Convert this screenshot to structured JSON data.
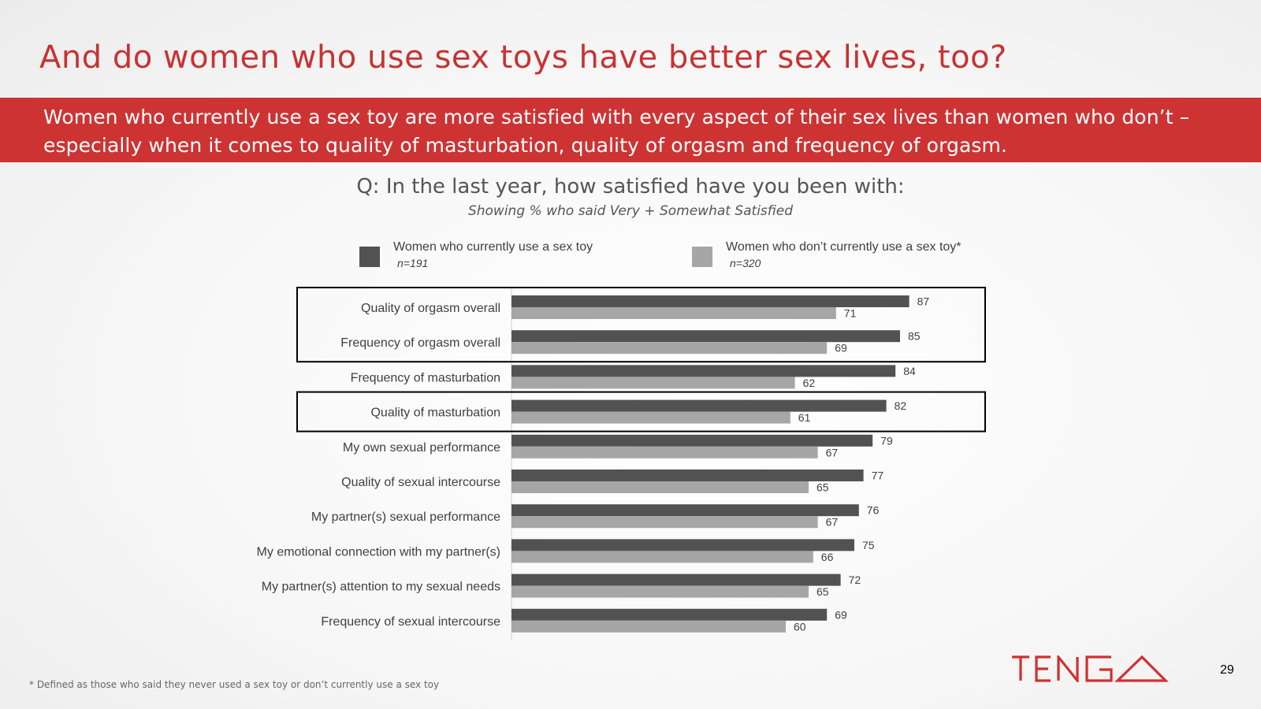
{
  "slide": {
    "title": "And do women who use sex toys have better sex lives, too?",
    "banner_line1": "Women who currently use a sex toy are more satisfied with every aspect of their sex lives than women who don’t –",
    "banner_line2": "especially when it comes to quality of masturbation, quality of orgasm and frequency of orgasm.",
    "question": "Q: In the last year, how satisfied have you been with:",
    "subtitle": "Showing % who said Very + Somewhat Satisfied",
    "footnote": "* Defined as those who said they never used a sex toy or don’t currently use a sex toy",
    "page_number": "29",
    "logo_text": "TENGA"
  },
  "legend": [
    {
      "label": "Women who currently use a sex toy",
      "n": "n=191",
      "color": "#525252"
    },
    {
      "label": "Women who don’t currently use a sex toy*",
      "n": "n=320",
      "color": "#a6a6a6"
    }
  ],
  "colors": {
    "accent": "#cd3333",
    "title": "#c83232",
    "series_users": "#525252",
    "series_non_users": "#a6a6a6"
  },
  "chart_data": {
    "type": "bar",
    "orientation": "horizontal",
    "categories": [
      "Quality of orgasm overall",
      "Frequency of orgasm overall",
      "Frequency of masturbation",
      "Quality of masturbation",
      "My own sexual performance",
      "Quality of sexual intercourse",
      "My partner(s) sexual performance",
      "My emotional connection with my partner(s)",
      "My partner(s) attention to my sexual needs",
      "Frequency of sexual intercourse"
    ],
    "series": [
      {
        "name": "Women who currently use a sex toy",
        "values": [
          87,
          85,
          84,
          82,
          79,
          77,
          76,
          75,
          72,
          69
        ]
      },
      {
        "name": "Women who don’t currently use a sex toy*",
        "values": [
          71,
          69,
          62,
          61,
          67,
          65,
          67,
          66,
          65,
          60
        ]
      }
    ],
    "xlim": [
      0,
      100
    ],
    "highlighted_groups": [
      [
        "Quality of orgasm overall",
        "Frequency of orgasm overall"
      ],
      [
        "Quality of masturbation"
      ]
    ],
    "data_labels": true,
    "grid": false
  }
}
